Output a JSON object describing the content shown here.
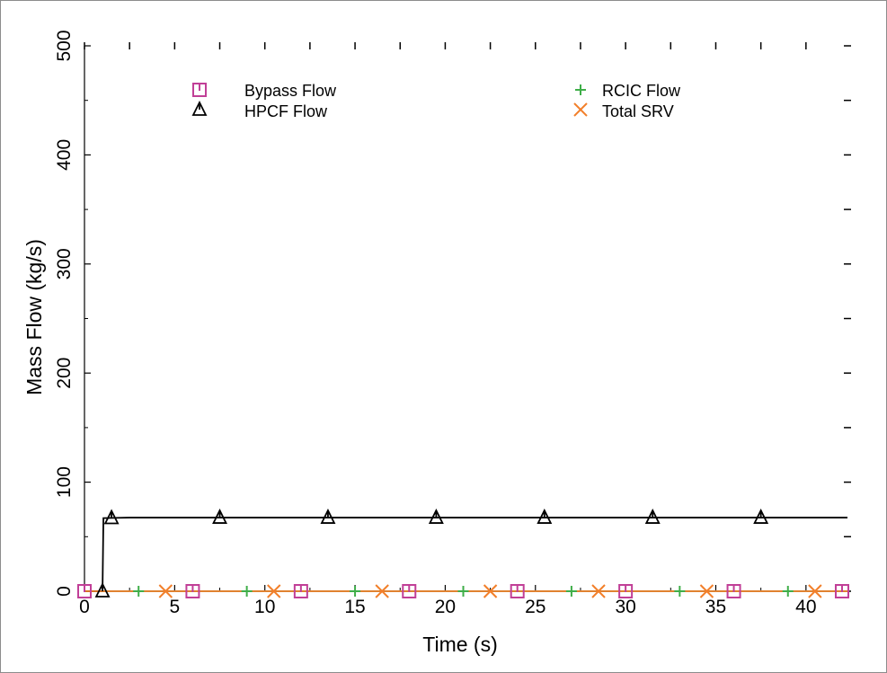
{
  "chart_data": {
    "type": "line",
    "title": "",
    "xlabel": "Time (s)",
    "ylabel": "Mass Flow (kg/s)",
    "xlim": [
      0,
      42.3
    ],
    "ylim": [
      0,
      500
    ],
    "x_ticks": [
      0,
      5,
      10,
      15,
      20,
      25,
      30,
      35,
      40
    ],
    "y_ticks": [
      0,
      100,
      200,
      300,
      400,
      500
    ],
    "grid": false,
    "legend_placement": "top (two columns)",
    "series": [
      {
        "name": "Bypass Flow",
        "color": "#c13f97",
        "marker": "square",
        "points": [
          [
            0,
            0
          ],
          [
            42.3,
            0
          ]
        ],
        "marker_x": [
          0,
          6,
          12,
          18,
          24,
          30,
          36,
          42
        ]
      },
      {
        "name": "RCIC Flow",
        "color": "#3fae49",
        "marker": "plus",
        "points": [
          [
            0,
            0
          ],
          [
            42.3,
            0
          ]
        ],
        "marker_x": [
          3,
          9,
          15,
          21,
          27,
          33,
          39
        ]
      },
      {
        "name": "HPCF Flow",
        "color": "#000000",
        "marker": "triangle",
        "points": [
          [
            0,
            0
          ],
          [
            1.0,
            0
          ],
          [
            1.05,
            67
          ],
          [
            2.5,
            67.5
          ],
          [
            42.3,
            67.5
          ]
        ],
        "marker_x": [
          1.0,
          1.5,
          7.5,
          13.5,
          19.5,
          25.5,
          31.5,
          37.5
        ]
      },
      {
        "name": "Total SRV",
        "color": "#f27f2a",
        "marker": "x",
        "points": [
          [
            0,
            0
          ],
          [
            42.3,
            0
          ]
        ],
        "marker_x": [
          4.5,
          10.5,
          16.5,
          22.5,
          28.5,
          34.5,
          40.5
        ]
      }
    ]
  }
}
